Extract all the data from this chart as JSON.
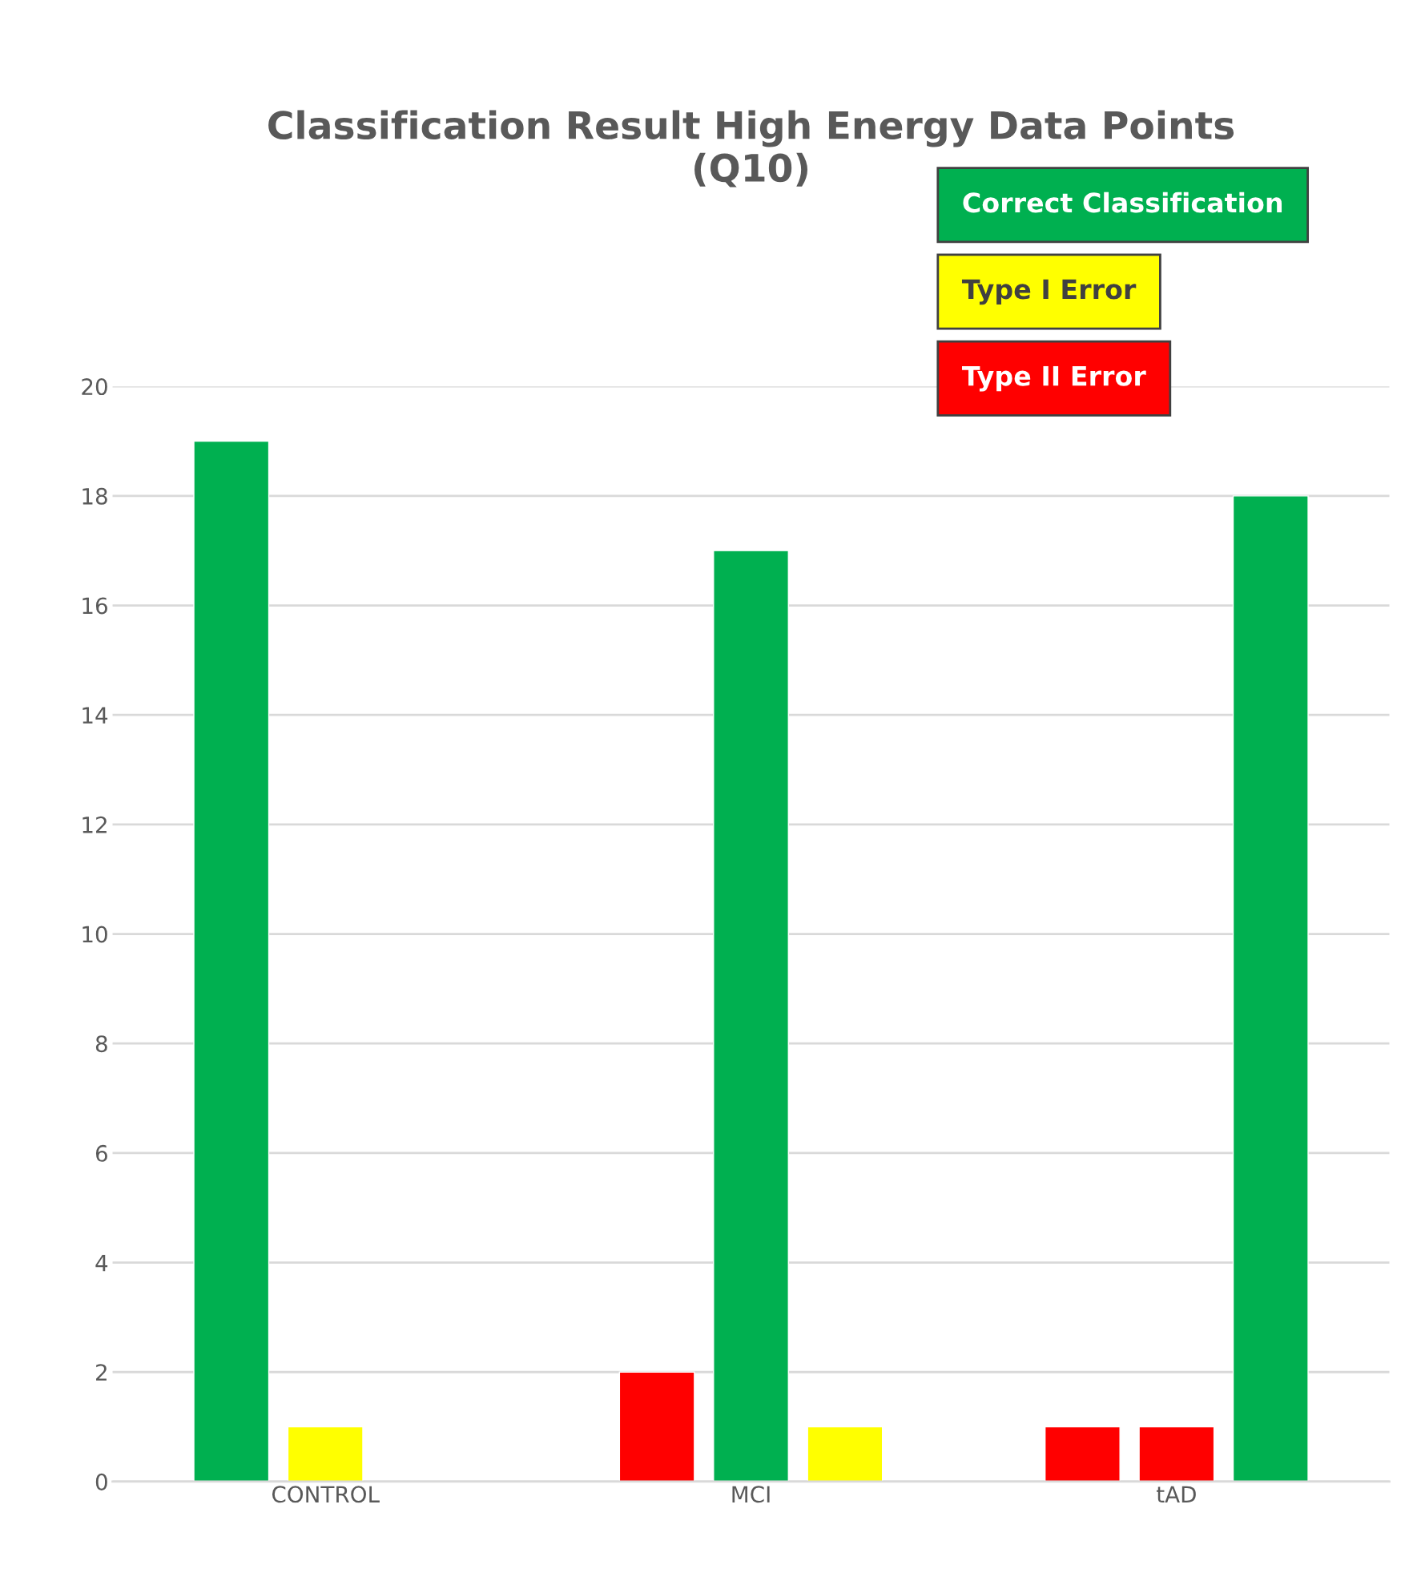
{
  "chart_data": {
    "type": "bar",
    "title": "Classification Result High Energy Data Points\n(Q10)",
    "categories": [
      "CONTROL",
      "MCI",
      "tAD"
    ],
    "series": [
      {
        "colors": [
          "#00b050",
          "#ff0000",
          "#ff0000"
        ],
        "values": [
          19,
          2,
          1
        ]
      },
      {
        "colors": [
          "#ffff00",
          "#00b050",
          "#ff0000"
        ],
        "values": [
          1,
          17,
          1
        ]
      },
      {
        "colors": [
          "#00b050",
          "#ffff00",
          "#00b050"
        ],
        "values": [
          null,
          1,
          18
        ]
      }
    ],
    "annotations": [
      "Correct Classification",
      "Type I Error",
      "Type II Error"
    ],
    "ylim": [
      0,
      20
    ],
    "yticks": [
      0,
      2,
      4,
      6,
      8,
      10,
      12,
      14,
      16,
      18,
      20
    ],
    "grid": "y"
  }
}
